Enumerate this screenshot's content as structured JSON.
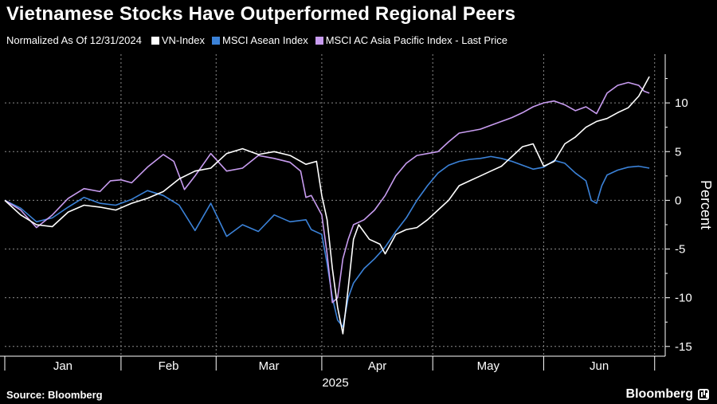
{
  "title": "Vietnamese Stocks Have Outperformed Regional Peers",
  "footer": {
    "source": "Source: Bloomberg",
    "brand": "Bloomberg"
  },
  "chart_data": {
    "type": "line",
    "title": "Vietnamese Stocks Have Outperformed Regional Peers",
    "subtitle": "Normalized As Of 12/31/2024",
    "ylabel": "Percent",
    "xlabel": "2025",
    "ylim": [
      -16,
      15
    ],
    "yticks": [
      -15,
      -10,
      -5,
      0,
      5,
      10
    ],
    "ytick_labels": [
      "-15",
      "-10",
      "-5",
      "0",
      "5",
      "10"
    ],
    "xlim": [
      0,
      125
    ],
    "xticks": [
      {
        "x": 0,
        "label": ""
      },
      {
        "x": 22,
        "label": "Jan"
      },
      {
        "x": 40,
        "label": "Feb"
      },
      {
        "x": 60,
        "label": "Mar"
      },
      {
        "x": 81,
        "label": "Apr"
      },
      {
        "x": 102,
        "label": "May"
      },
      {
        "x": 123,
        "label": "Jun"
      }
    ],
    "month_labels": [
      {
        "x": 11,
        "label": "Jan"
      },
      {
        "x": 31,
        "label": "Feb"
      },
      {
        "x": 50,
        "label": "Mar"
      },
      {
        "x": 70.5,
        "label": "Apr"
      },
      {
        "x": 91.5,
        "label": "May"
      },
      {
        "x": 112.5,
        "label": "Jun"
      }
    ],
    "grid": true,
    "legend_position": "top-left",
    "series": [
      {
        "name": "VN-Index",
        "color": "#ffffff",
        "points": [
          [
            0,
            0
          ],
          [
            3,
            -1.5
          ],
          [
            6,
            -2.5
          ],
          [
            9,
            -2.7
          ],
          [
            12,
            -1.2
          ],
          [
            15,
            -0.5
          ],
          [
            18,
            -0.7
          ],
          [
            21,
            -1
          ],
          [
            24,
            -0.3
          ],
          [
            27,
            0.2
          ],
          [
            30,
            0.9
          ],
          [
            33,
            2.2
          ],
          [
            36,
            3
          ],
          [
            39,
            3.3
          ],
          [
            42,
            4.8
          ],
          [
            45,
            5.3
          ],
          [
            48,
            4.7
          ],
          [
            51,
            5
          ],
          [
            54,
            4.6
          ],
          [
            57,
            3.7
          ],
          [
            59,
            4
          ],
          [
            60,
            0.5
          ],
          [
            61,
            -2
          ],
          [
            62,
            -7
          ],
          [
            63,
            -11
          ],
          [
            64,
            -13.7
          ],
          [
            65,
            -9
          ],
          [
            66,
            -4
          ],
          [
            67,
            -2.5
          ],
          [
            69,
            -4
          ],
          [
            71,
            -4.5
          ],
          [
            72,
            -5.5
          ],
          [
            74,
            -3.5
          ],
          [
            76,
            -3
          ],
          [
            78,
            -2.8
          ],
          [
            80,
            -2
          ],
          [
            82,
            -1
          ],
          [
            84,
            0
          ],
          [
            86,
            1.5
          ],
          [
            88,
            2
          ],
          [
            90,
            2.5
          ],
          [
            92,
            3
          ],
          [
            94,
            3.5
          ],
          [
            96,
            4.5
          ],
          [
            98,
            5.5
          ],
          [
            100,
            5.8
          ],
          [
            102,
            3.5
          ],
          [
            104,
            4
          ],
          [
            106,
            5.8
          ],
          [
            108,
            6.5
          ],
          [
            110,
            7.5
          ],
          [
            112,
            8.1
          ],
          [
            114,
            8.4
          ],
          [
            116,
            9
          ],
          [
            118,
            9.5
          ],
          [
            120,
            10.7
          ],
          [
            122,
            12.7
          ]
        ]
      },
      {
        "name": "MSCI Asean Index",
        "color": "#3b82d8",
        "points": [
          [
            0,
            0
          ],
          [
            3,
            -0.8
          ],
          [
            6,
            -2.2
          ],
          [
            9,
            -1.8
          ],
          [
            12,
            -0.7
          ],
          [
            15,
            0.3
          ],
          [
            18,
            -0.3
          ],
          [
            21,
            -0.5
          ],
          [
            24,
            0.1
          ],
          [
            27,
            1
          ],
          [
            30,
            0.5
          ],
          [
            33,
            -0.5
          ],
          [
            36,
            -3.1
          ],
          [
            39,
            -0.3
          ],
          [
            42,
            -3.7
          ],
          [
            45,
            -2.5
          ],
          [
            48,
            -3.2
          ],
          [
            51,
            -1.5
          ],
          [
            54,
            -2.2
          ],
          [
            57,
            -2
          ],
          [
            58,
            -3
          ],
          [
            60,
            -3.5
          ],
          [
            61,
            -6.5
          ],
          [
            62,
            -10
          ],
          [
            63,
            -12.3
          ],
          [
            64,
            -13
          ],
          [
            65,
            -10
          ],
          [
            66,
            -8.5
          ],
          [
            68,
            -7
          ],
          [
            70,
            -6
          ],
          [
            72,
            -4.8
          ],
          [
            74,
            -3.2
          ],
          [
            76,
            -1.8
          ],
          [
            78,
            0
          ],
          [
            80,
            1.5
          ],
          [
            82,
            2.8
          ],
          [
            84,
            3.6
          ],
          [
            86,
            4
          ],
          [
            88,
            4.2
          ],
          [
            90,
            4.3
          ],
          [
            92,
            4.5
          ],
          [
            94,
            4.3
          ],
          [
            96,
            4
          ],
          [
            98,
            3.6
          ],
          [
            100,
            3.2
          ],
          [
            102,
            3.4
          ],
          [
            104,
            4.1
          ],
          [
            106,
            3.8
          ],
          [
            108,
            2.8
          ],
          [
            110,
            2
          ],
          [
            111,
            0
          ],
          [
            112,
            -0.3
          ],
          [
            113,
            1.5
          ],
          [
            114,
            2.6
          ],
          [
            116,
            3.1
          ],
          [
            118,
            3.4
          ],
          [
            120,
            3.5
          ],
          [
            122,
            3.3
          ]
        ]
      },
      {
        "name": "MSCI AC Asia Pacific Index - Last Price",
        "color": "#c89cf0",
        "points": [
          [
            0,
            0
          ],
          [
            3,
            -1
          ],
          [
            6,
            -2.8
          ],
          [
            9,
            -1.5
          ],
          [
            12,
            0.2
          ],
          [
            15,
            1.2
          ],
          [
            18,
            0.9
          ],
          [
            20,
            2
          ],
          [
            22,
            2.1
          ],
          [
            24,
            1.8
          ],
          [
            27,
            3.4
          ],
          [
            30,
            4.7
          ],
          [
            32,
            4
          ],
          [
            34,
            1.1
          ],
          [
            36,
            2.5
          ],
          [
            39,
            4.8
          ],
          [
            42,
            3
          ],
          [
            45,
            3.3
          ],
          [
            48,
            4.6
          ],
          [
            51,
            4.3
          ],
          [
            54,
            3.9
          ],
          [
            56,
            3
          ],
          [
            57,
            0.3
          ],
          [
            58,
            0.5
          ],
          [
            60,
            -1.5
          ],
          [
            61,
            -5.5
          ],
          [
            62,
            -10.5
          ],
          [
            63,
            -10
          ],
          [
            64,
            -6
          ],
          [
            65,
            -4
          ],
          [
            66,
            -2.5
          ],
          [
            68,
            -2
          ],
          [
            70,
            -1
          ],
          [
            72,
            0.5
          ],
          [
            74,
            2.5
          ],
          [
            76,
            3.8
          ],
          [
            78,
            4.6
          ],
          [
            80,
            4.8
          ],
          [
            82,
            5
          ],
          [
            84,
            6
          ],
          [
            86,
            6.9
          ],
          [
            88,
            7.1
          ],
          [
            90,
            7.3
          ],
          [
            92,
            7.7
          ],
          [
            94,
            8.1
          ],
          [
            96,
            8.5
          ],
          [
            98,
            9
          ],
          [
            100,
            9.6
          ],
          [
            102,
            10
          ],
          [
            104,
            10.2
          ],
          [
            106,
            9.8
          ],
          [
            108,
            9.2
          ],
          [
            110,
            9.6
          ],
          [
            112,
            8.9
          ],
          [
            114,
            11
          ],
          [
            116,
            11.8
          ],
          [
            118,
            12.1
          ],
          [
            120,
            11.8
          ],
          [
            121,
            11.2
          ],
          [
            122,
            11
          ]
        ]
      }
    ]
  }
}
